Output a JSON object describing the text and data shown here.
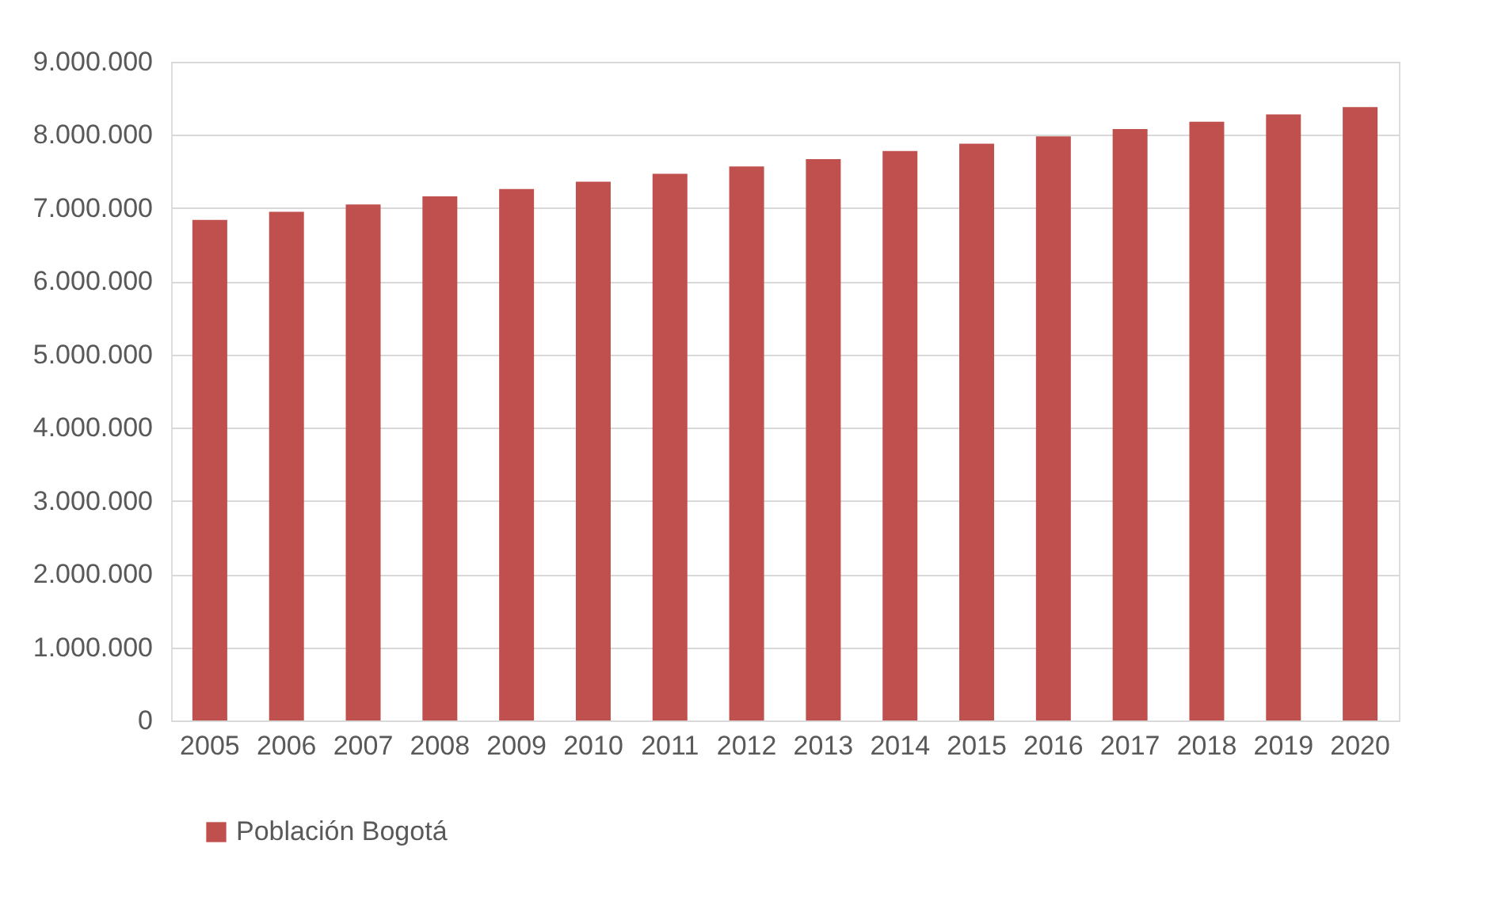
{
  "chart_data": {
    "type": "bar",
    "categories": [
      "2005",
      "2006",
      "2007",
      "2008",
      "2009",
      "2010",
      "2011",
      "2012",
      "2013",
      "2014",
      "2015",
      "2016",
      "2017",
      "2018",
      "2019",
      "2020"
    ],
    "series": [
      {
        "name": "Población Bogotá",
        "color": "#c0504d",
        "values": [
          6840000,
          6950000,
          7050000,
          7160000,
          7260000,
          7360000,
          7470000,
          7570000,
          7670000,
          7780000,
          7880000,
          7980000,
          8080000,
          8180000,
          8280000,
          8380000
        ]
      }
    ],
    "ylim": [
      0,
      9000000
    ],
    "yticks": [
      {
        "value": 0,
        "label": "0"
      },
      {
        "value": 1000000,
        "label": "1.000.000"
      },
      {
        "value": 2000000,
        "label": "2.000.000"
      },
      {
        "value": 3000000,
        "label": "3.000.000"
      },
      {
        "value": 4000000,
        "label": "4.000.000"
      },
      {
        "value": 5000000,
        "label": "5.000.000"
      },
      {
        "value": 6000000,
        "label": "6.000.000"
      },
      {
        "value": 7000000,
        "label": "7.000.000"
      },
      {
        "value": 8000000,
        "label": "8.000.000"
      },
      {
        "value": 9000000,
        "label": "9.000.000"
      }
    ],
    "grid": "y",
    "legend": "bottom"
  }
}
